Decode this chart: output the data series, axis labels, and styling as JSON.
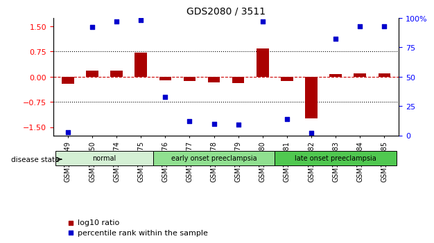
{
  "title": "GDS2080 / 3511",
  "samples": [
    "GSM106249",
    "GSM106250",
    "GSM106274",
    "GSM106275",
    "GSM106276",
    "GSM106277",
    "GSM106278",
    "GSM106279",
    "GSM106280",
    "GSM106281",
    "GSM106282",
    "GSM106283",
    "GSM106284",
    "GSM106285"
  ],
  "log10_ratio": [
    -0.22,
    0.18,
    0.18,
    0.72,
    -0.1,
    -0.12,
    -0.18,
    -0.2,
    0.83,
    -0.12,
    -1.25,
    0.08,
    0.1,
    0.1
  ],
  "percentile_rank": [
    3,
    92,
    97,
    98,
    33,
    12,
    10,
    9,
    97,
    14,
    2,
    82,
    93,
    93
  ],
  "groups": [
    {
      "label": "normal",
      "start": 0,
      "end": 4,
      "color": "#c8f0c8"
    },
    {
      "label": "early onset preeclampsia",
      "start": 4,
      "end": 9,
      "color": "#80d880"
    },
    {
      "label": "late onset preeclampsia",
      "start": 9,
      "end": 14,
      "color": "#40c040"
    }
  ],
  "bar_color": "#aa0000",
  "dot_color": "#0000cc",
  "zero_line_color": "#cc0000",
  "grid_color": "#000000",
  "ylim_left": [
    -1.75,
    1.75
  ],
  "ylim_right": [
    0,
    100
  ],
  "yticks_left": [
    -1.5,
    -0.75,
    0,
    0.75,
    1.5
  ],
  "yticks_right": [
    0,
    25,
    50,
    75,
    100
  ],
  "hline_values": [
    -0.75,
    0.75
  ],
  "background_color": "#ffffff",
  "legend_ratio_label": "log10 ratio",
  "legend_pct_label": "percentile rank within the sample",
  "disease_state_label": "disease state"
}
